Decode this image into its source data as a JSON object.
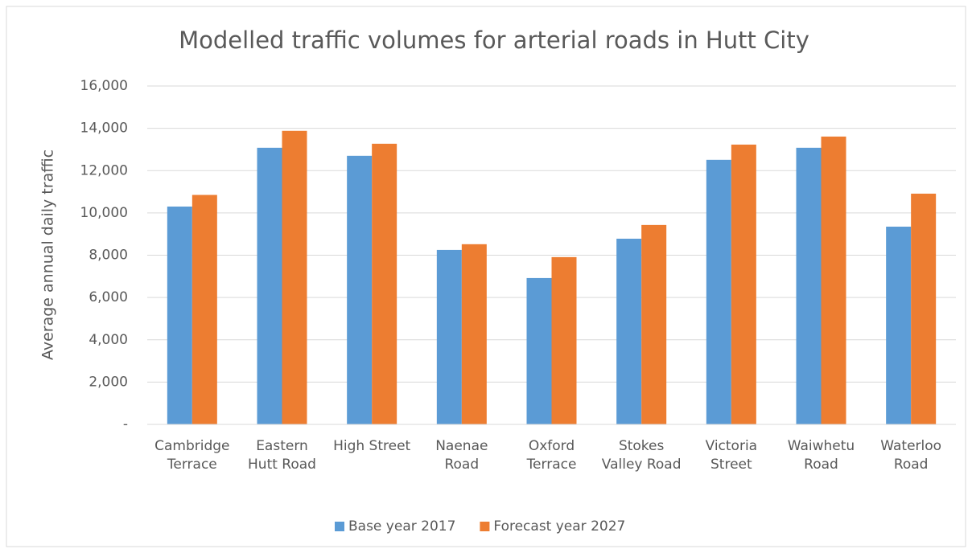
{
  "chart_data": {
    "type": "bar",
    "title": "Modelled traffic volumes for arterial roads in Hutt City",
    "y_label": "Average annual daily traffic",
    "categories": [
      "Cambridge Terrace",
      "Eastern Hutt Road",
      "High Street",
      "Naenae Road",
      "Oxford Terrace",
      "Stokes Valley Road",
      "Victoria Street",
      "Waiwhetu Road",
      "Waterloo Road"
    ],
    "series": [
      {
        "name": "Base year 2017",
        "color": "#5b9bd5",
        "values": [
          10300,
          13080,
          12700,
          8250,
          6920,
          8780,
          12510,
          13080,
          9350
        ]
      },
      {
        "name": "Forecast year 2027",
        "color": "#ed7d31",
        "values": [
          10850,
          13880,
          13270,
          8520,
          7910,
          9430,
          13230,
          13610,
          10910
        ]
      }
    ],
    "ylim": [
      0,
      16000
    ],
    "yticks": [
      {
        "value": 0,
        "label": "-"
      },
      {
        "value": 2000,
        "label": "2,000"
      },
      {
        "value": 4000,
        "label": "4,000"
      },
      {
        "value": 6000,
        "label": "6,000"
      },
      {
        "value": 8000,
        "label": "8,000"
      },
      {
        "value": 10000,
        "label": "10,000"
      },
      {
        "value": 12000,
        "label": "12,000"
      },
      {
        "value": 14000,
        "label": "14,000"
      },
      {
        "value": 16000,
        "label": "16,000"
      }
    ],
    "grid": true,
    "legend": "bottom"
  }
}
